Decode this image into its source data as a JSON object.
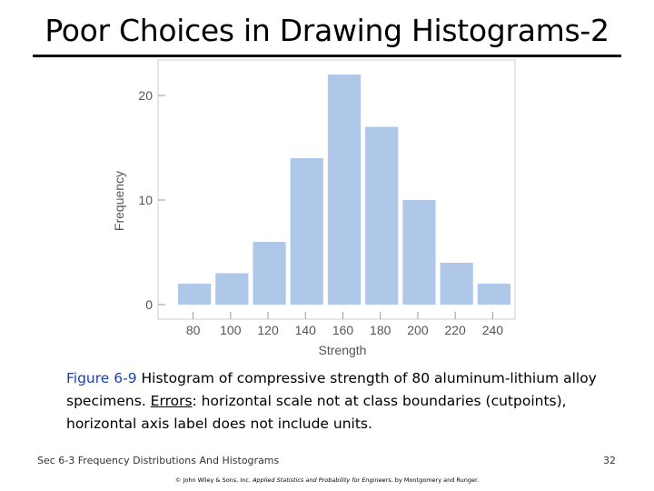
{
  "slide": {
    "title": "Poor Choices in Drawing Histograms-2"
  },
  "caption": {
    "figure_ref": "Figure 6-9",
    "text1": " Histogram of compressive strength of 80 aluminum-lithium alloy specimens. ",
    "errors_label": "Errors",
    "text2": ": horizontal scale not at class boundaries (cutpoints), horizontal axis label does not include units."
  },
  "footer": {
    "section": "Sec 6-3 Frequency Distributions And Histograms",
    "page": "32",
    "copyright_prefix": "© John Wiley & Sons, Inc. ",
    "book_title": "Applied Statistics and Probability for Engineers",
    "copyright_suffix": ", by Montgomery and Runger."
  },
  "chart_data": {
    "type": "bar",
    "title": "",
    "xlabel": "Strength",
    "ylabel": "Frequency",
    "categories": [
      "70-90",
      "90-110",
      "110-130",
      "130-150",
      "150-170",
      "170-190",
      "190-210",
      "210-230",
      "230-250"
    ],
    "values": [
      2,
      3,
      6,
      14,
      22,
      17,
      10,
      4,
      2
    ],
    "x_ticks": [
      80,
      100,
      120,
      140,
      160,
      180,
      200,
      220,
      240
    ],
    "y_ticks": [
      0,
      10,
      20
    ],
    "xlim": [
      70,
      250
    ],
    "ylim": [
      0,
      23
    ],
    "grid": false,
    "bar_color": "#afc8e9"
  }
}
